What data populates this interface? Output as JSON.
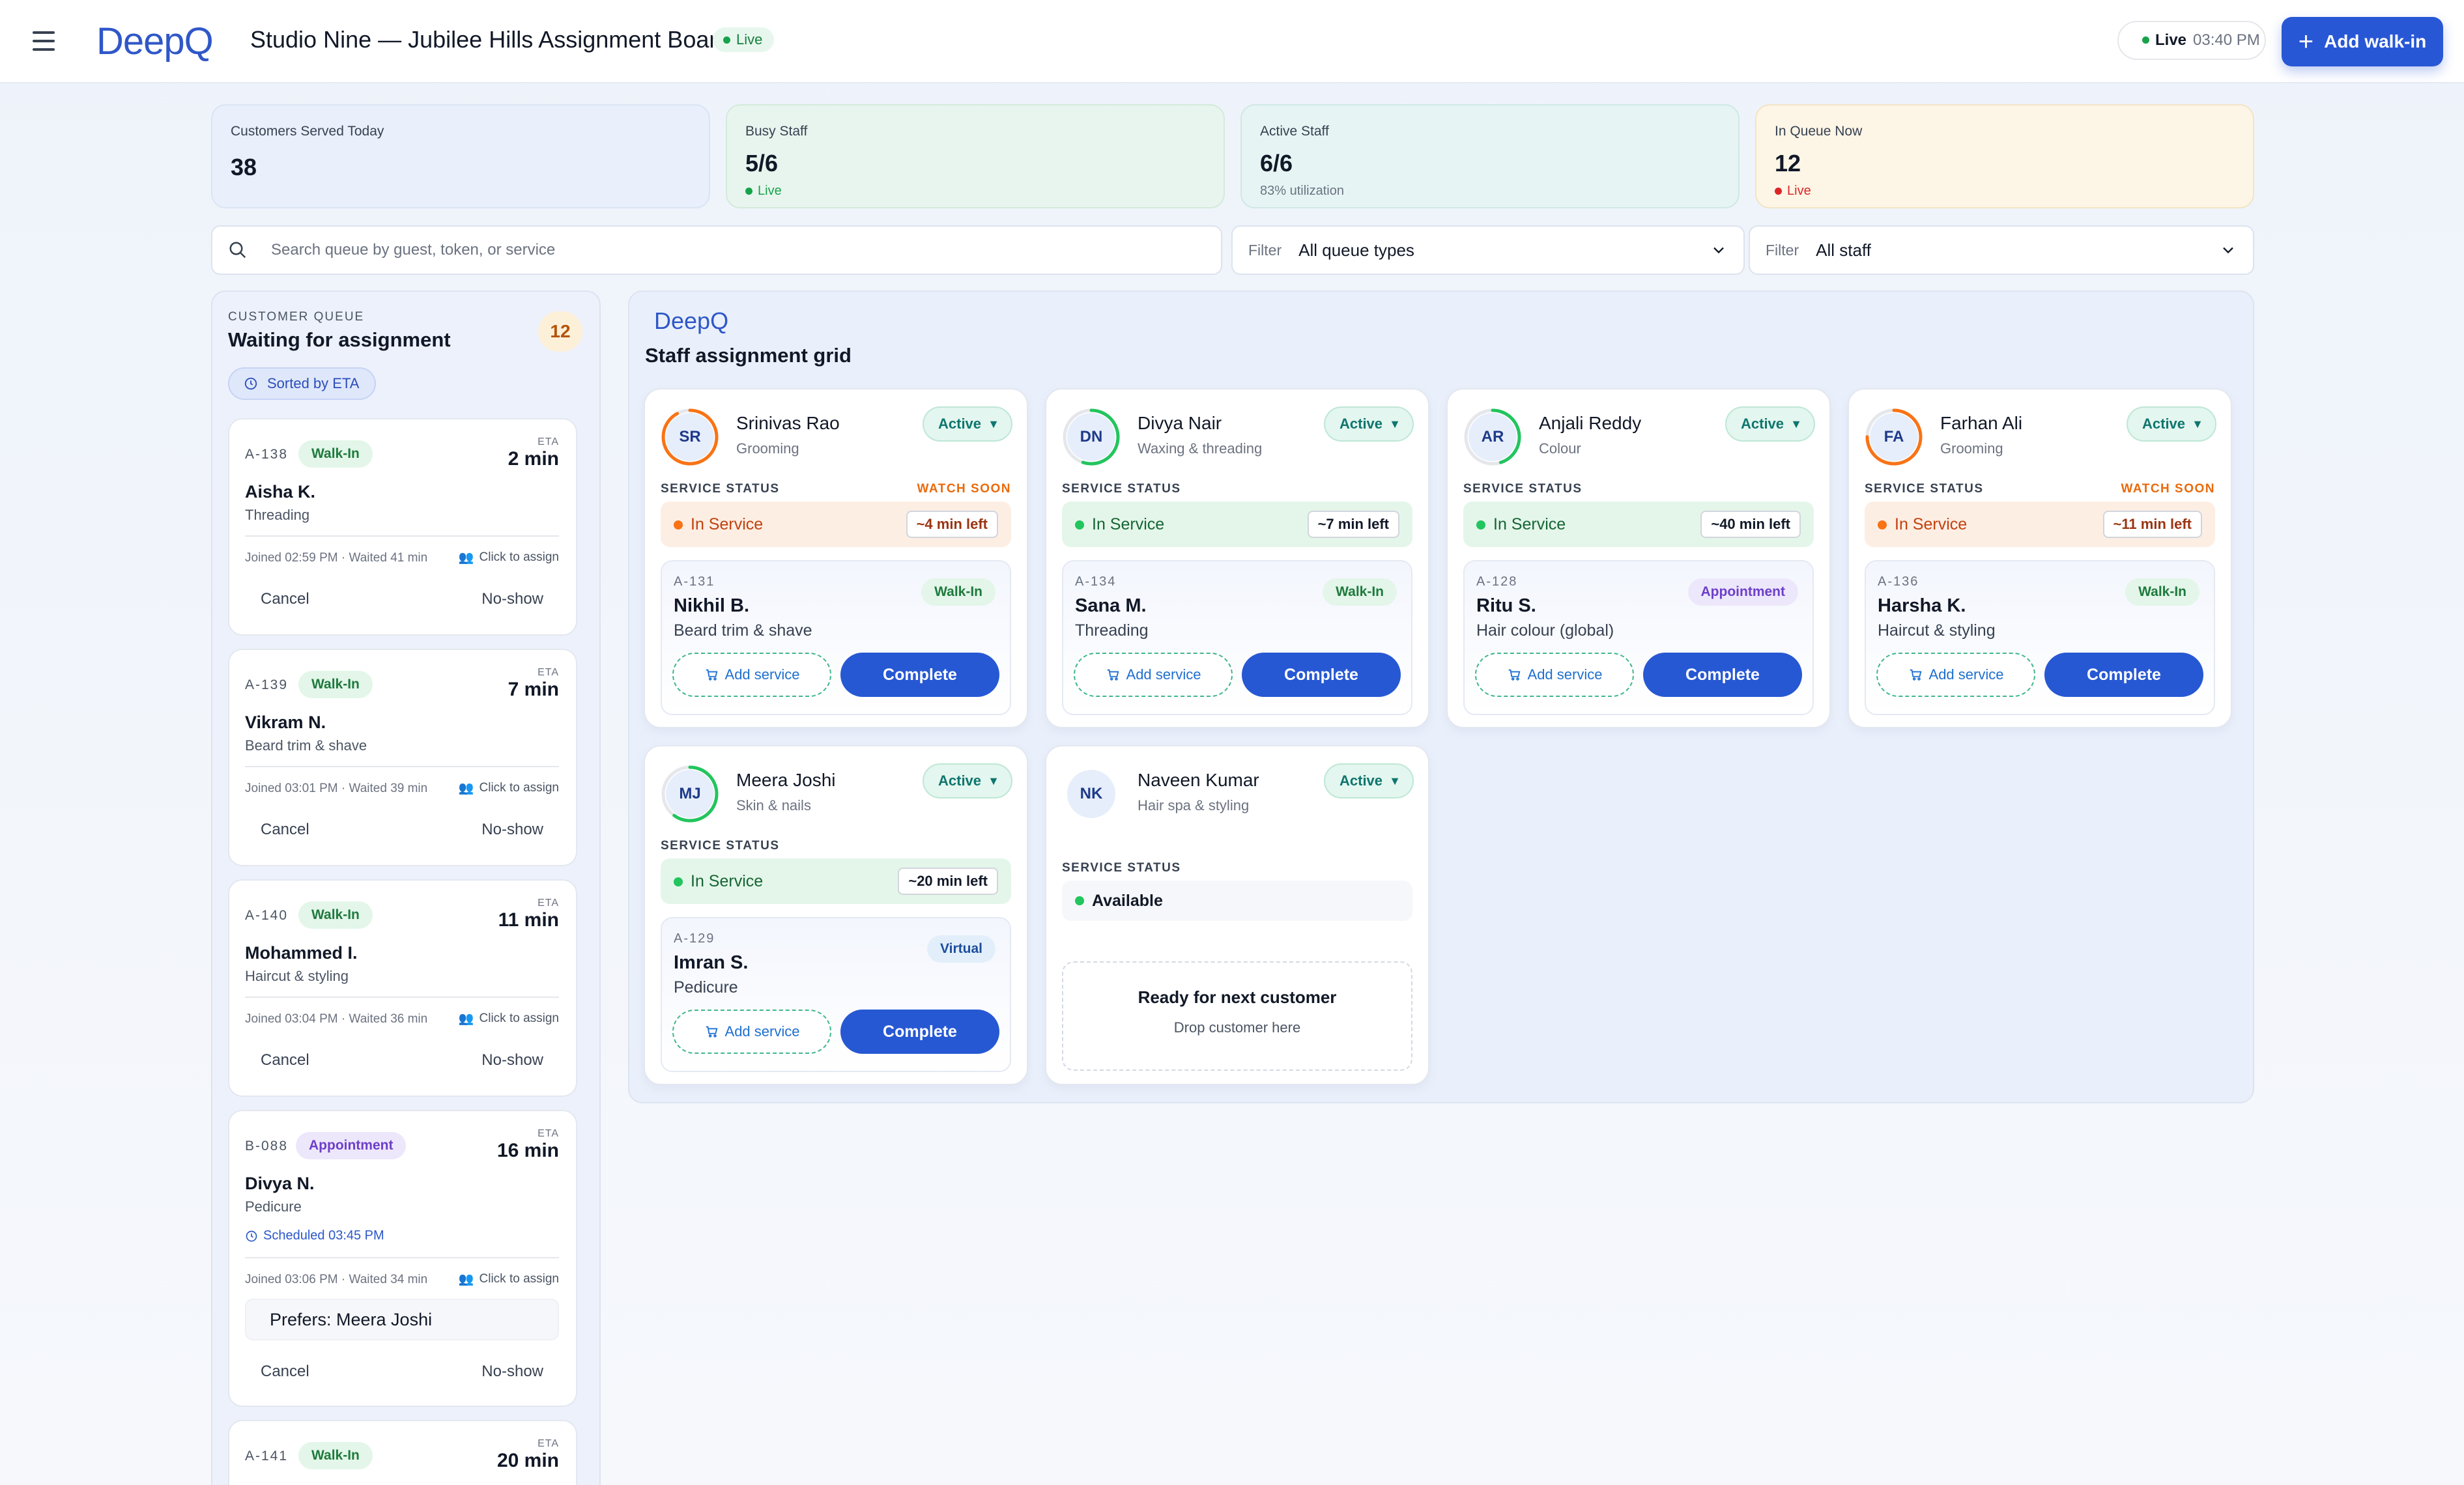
{
  "header": {
    "menu_icon": "hamburger-menu-icon",
    "logo_text": "DeepQ",
    "title": "Studio Nine — Jubilee Hills Assignment Board",
    "live_badge": "Live",
    "clock_status": "Live",
    "clock_time": "03:40 PM",
    "add_walkin_label": "Add walk-in"
  },
  "stats": [
    {
      "label": "Customers Served Today",
      "value": "38",
      "sub": ""
    },
    {
      "label": "Busy Staff",
      "value": "5/6",
      "sub": "Live"
    },
    {
      "label": "Active Staff",
      "value": "6/6",
      "sub": "83% utilization"
    },
    {
      "label": "In Queue Now",
      "value": "12",
      "sub": "Live"
    }
  ],
  "colors": {
    "accent": "#2857d6",
    "live_green": "#16a34a",
    "live_red": "#dc2626",
    "watch_orange": "#ea6a0c"
  },
  "search": {
    "placeholder": "Search queue by guest, token, or service"
  },
  "filters": [
    {
      "label": "Filter",
      "value": "All queue types"
    },
    {
      "label": "Filter",
      "value": "All staff"
    }
  ],
  "queue": {
    "eyebrow": "CUSTOMER QUEUE",
    "title": "Waiting for assignment",
    "count": "12",
    "sort_label": "Sorted by ETA",
    "items": [
      {
        "token": "A-138",
        "type": "Walk-In",
        "eta_label": "ETA",
        "eta": "2 min",
        "name": "Aisha K.",
        "service": "Threading",
        "joined": "Joined 02:59 PM",
        "waited": "Waited 41 min",
        "assign": "Click to assign",
        "cancel": "Cancel",
        "noshow": "No-show"
      },
      {
        "token": "A-139",
        "type": "Walk-In",
        "eta_label": "ETA",
        "eta": "7 min",
        "name": "Vikram N.",
        "service": "Beard trim & shave",
        "joined": "Joined 03:01 PM",
        "waited": "Waited 39 min",
        "assign": "Click to assign",
        "cancel": "Cancel",
        "noshow": "No-show"
      },
      {
        "token": "A-140",
        "type": "Walk-In",
        "eta_label": "ETA",
        "eta": "11 min",
        "name": "Mohammed I.",
        "service": "Haircut & styling",
        "joined": "Joined 03:04 PM",
        "waited": "Waited 36 min",
        "assign": "Click to assign",
        "cancel": "Cancel",
        "noshow": "No-show"
      },
      {
        "token": "B-088",
        "type": "Appointment",
        "eta_label": "ETA",
        "eta": "16 min",
        "name": "Divya N.",
        "service": "Pedicure",
        "scheduled": "Scheduled 03:45 PM",
        "joined": "Joined 03:06 PM",
        "waited": "Waited 34 min",
        "assign": "Click to assign",
        "preference": "Prefers: Meera Joshi",
        "cancel": "Cancel",
        "noshow": "No-show"
      },
      {
        "token": "A-141",
        "type": "Walk-In",
        "eta_label": "ETA",
        "eta": "20 min"
      }
    ]
  },
  "grid": {
    "logo_text": "DeepQ",
    "title": "Staff assignment grid",
    "status_label": "SERVICE STATUS",
    "staff": [
      {
        "initials": "SR",
        "name": "Srinivas Rao",
        "role": "Grooming",
        "state": "Active",
        "warning": "WATCH SOON",
        "status": "In Service",
        "time_left": "~4 min left",
        "progress": 0.92,
        "ring_color": "#f97316",
        "customer": {
          "token": "A-131",
          "name": "Nikhil B.",
          "service": "Beard trim & shave",
          "type": "Walk-In"
        },
        "add_service": "Add service",
        "complete": "Complete"
      },
      {
        "initials": "DN",
        "name": "Divya Nair",
        "role": "Waxing & threading",
        "state": "Active",
        "warning": "",
        "status": "In Service",
        "time_left": "~7 min left",
        "progress": 0.55,
        "ring_color": "#22c55e",
        "customer": {
          "token": "A-134",
          "name": "Sana M.",
          "service": "Threading",
          "type": "Walk-In"
        },
        "add_service": "Add service",
        "complete": "Complete"
      },
      {
        "initials": "AR",
        "name": "Anjali Reddy",
        "role": "Colour",
        "state": "Active",
        "warning": "",
        "status": "In Service",
        "time_left": "~40 min left",
        "progress": 0.45,
        "ring_color": "#22c55e",
        "customer": {
          "token": "A-128",
          "name": "Ritu S.",
          "service": "Hair colour (global)",
          "type": "Appointment"
        },
        "add_service": "Add service",
        "complete": "Complete"
      },
      {
        "initials": "FA",
        "name": "Farhan Ali",
        "role": "Grooming",
        "state": "Active",
        "warning": "WATCH SOON",
        "status": "In Service",
        "time_left": "~11 min left",
        "progress": 0.75,
        "ring_color": "#f97316",
        "customer": {
          "token": "A-136",
          "name": "Harsha K.",
          "service": "Haircut & styling",
          "type": "Walk-In"
        },
        "add_service": "Add service",
        "complete": "Complete"
      },
      {
        "initials": "MJ",
        "name": "Meera Joshi",
        "role": "Skin & nails",
        "state": "Active",
        "warning": "",
        "status": "In Service",
        "time_left": "~20 min left",
        "progress": 0.6,
        "ring_color": "#22c55e",
        "customer": {
          "token": "A-129",
          "name": "Imran S.",
          "service": "Pedicure",
          "type": "Virtual"
        },
        "add_service": "Add service",
        "complete": "Complete"
      },
      {
        "initials": "NK",
        "name": "Naveen Kumar",
        "role": "Hair spa & styling",
        "state": "Active",
        "status": "Available",
        "ready_title": "Ready for next customer",
        "ready_sub": "Drop customer here"
      }
    ]
  }
}
